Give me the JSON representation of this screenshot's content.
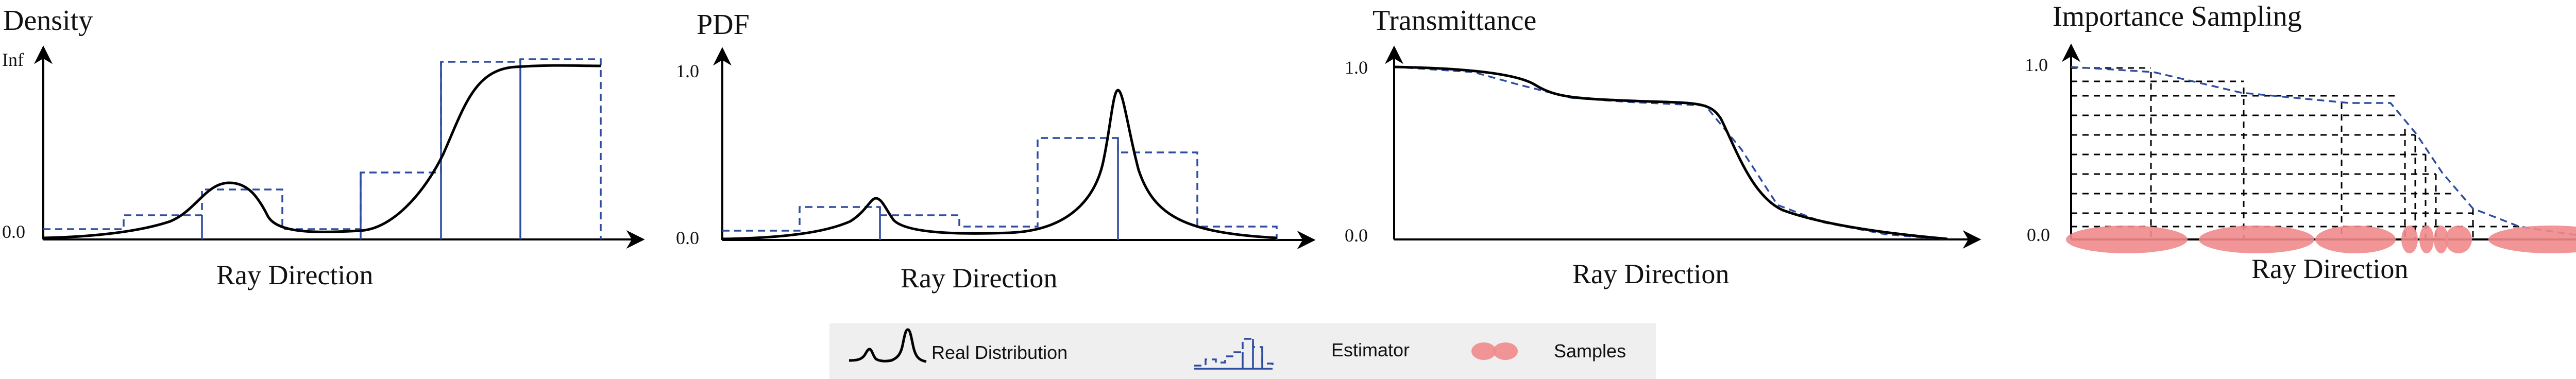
{
  "panels": [
    {
      "title": "Density",
      "ytick_top": "Inf",
      "ytick_bottom": "0.0",
      "xlabel": "Ray Direction"
    },
    {
      "title": "PDF",
      "ytick_top": "1.0",
      "ytick_bottom": "0.0",
      "xlabel": "Ray Direction"
    },
    {
      "title": "Transmittance",
      "ytick_top": "1.0",
      "ytick_bottom": "0.0",
      "xlabel": "Ray Direction"
    },
    {
      "title": "Importance Sampling",
      "ytick_top": "1.0",
      "ytick_bottom": "0.0",
      "xlabel": "Ray Direction"
    }
  ],
  "legend": {
    "real": "Real Distribution",
    "estimator": "Estimator",
    "samples": "Samples"
  },
  "colors": {
    "estimator": "#2f4da0",
    "samples": "#f08a8c",
    "real": "#000000"
  }
}
